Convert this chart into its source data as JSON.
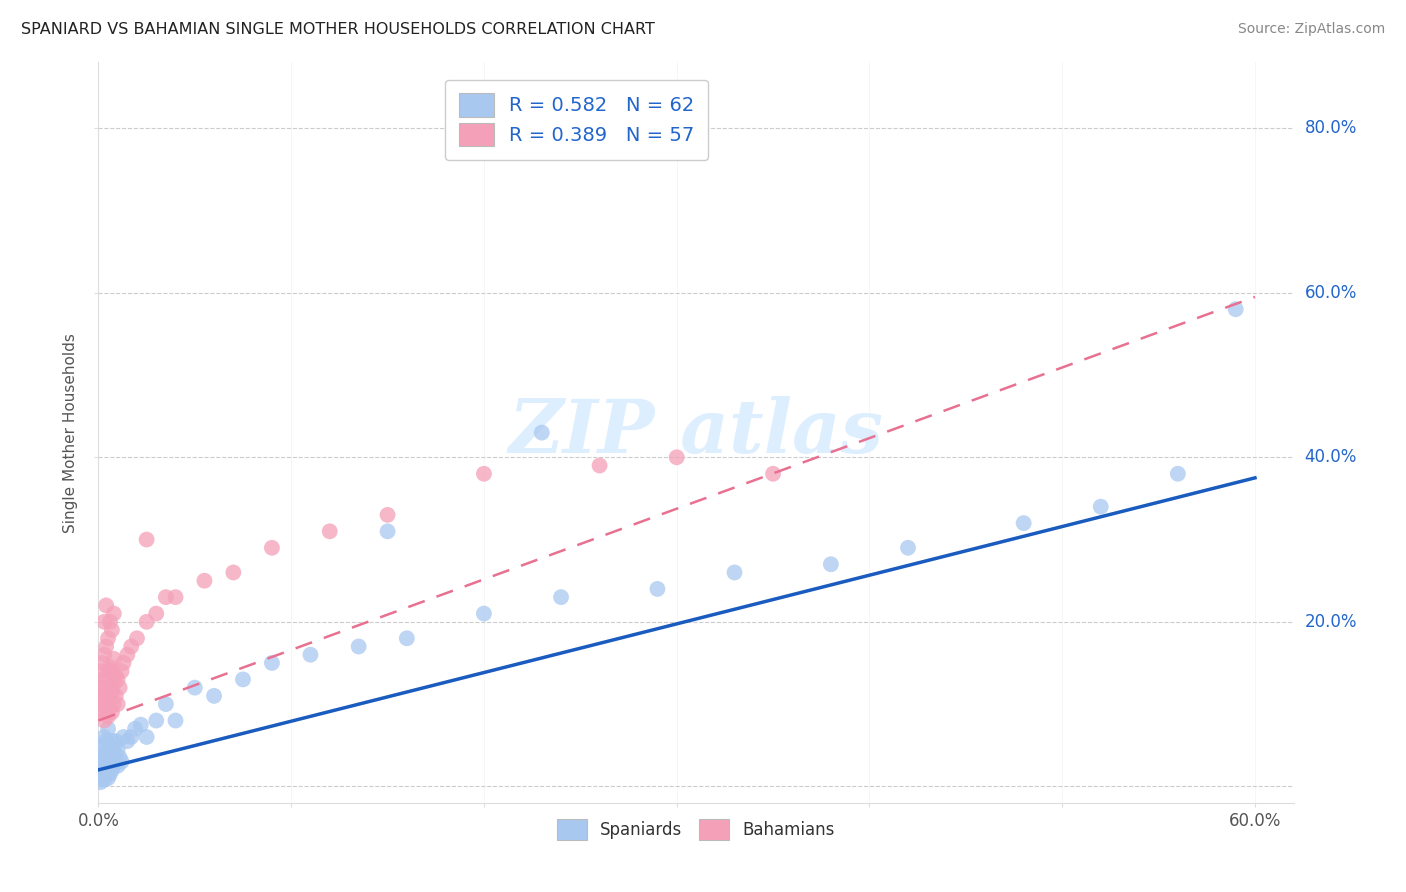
{
  "title": "SPANIARD VS BAHAMIAN SINGLE MOTHER HOUSEHOLDS CORRELATION CHART",
  "source": "Source: ZipAtlas.com",
  "ylabel": "Single Mother Households",
  "xlim": [
    0.0,
    0.62
  ],
  "ylim": [
    -0.02,
    0.88
  ],
  "xticks": [
    0.0,
    0.1,
    0.2,
    0.3,
    0.4,
    0.5,
    0.6
  ],
  "xticklabels": [
    "0.0%",
    "",
    "",
    "",
    "",
    "",
    "60.0%"
  ],
  "ytick_positions": [
    0.2,
    0.4,
    0.6,
    0.8
  ],
  "ytick_labels": [
    "20.0%",
    "40.0%",
    "60.0%",
    "80.0%"
  ],
  "grid_yticks": [
    0.0,
    0.2,
    0.4,
    0.6,
    0.8
  ],
  "spaniards_R": 0.582,
  "spaniards_N": 62,
  "bahamians_R": 0.389,
  "bahamians_N": 57,
  "spaniards_color": "#a8c8f0",
  "bahamians_color": "#f4a0b8",
  "spaniards_line_color": "#1a5bbf",
  "bahamians_line_color": "#e87090",
  "watermark_color": "#ddeeff",
  "background_color": "#ffffff",
  "grid_color": "#cccccc",
  "legend_text_color": "#2266cc",
  "spaniards_x": [
    0.001,
    0.001,
    0.001,
    0.002,
    0.002,
    0.002,
    0.002,
    0.003,
    0.003,
    0.003,
    0.003,
    0.003,
    0.004,
    0.004,
    0.004,
    0.004,
    0.005,
    0.005,
    0.005,
    0.005,
    0.006,
    0.006,
    0.006,
    0.007,
    0.007,
    0.007,
    0.008,
    0.008,
    0.009,
    0.009,
    0.01,
    0.01,
    0.011,
    0.012,
    0.013,
    0.015,
    0.017,
    0.019,
    0.022,
    0.025,
    0.03,
    0.035,
    0.04,
    0.05,
    0.06,
    0.075,
    0.09,
    0.11,
    0.135,
    0.16,
    0.2,
    0.24,
    0.29,
    0.33,
    0.38,
    0.42,
    0.48,
    0.52,
    0.56,
    0.59,
    0.23,
    0.15
  ],
  "spaniards_y": [
    0.02,
    0.03,
    0.005,
    0.01,
    0.015,
    0.025,
    0.04,
    0.008,
    0.02,
    0.035,
    0.05,
    0.06,
    0.015,
    0.025,
    0.04,
    0.055,
    0.01,
    0.02,
    0.035,
    0.07,
    0.015,
    0.03,
    0.045,
    0.02,
    0.04,
    0.055,
    0.025,
    0.045,
    0.03,
    0.055,
    0.025,
    0.045,
    0.035,
    0.03,
    0.06,
    0.055,
    0.06,
    0.07,
    0.075,
    0.06,
    0.08,
    0.1,
    0.08,
    0.12,
    0.11,
    0.13,
    0.15,
    0.16,
    0.17,
    0.18,
    0.21,
    0.23,
    0.24,
    0.26,
    0.27,
    0.29,
    0.32,
    0.34,
    0.38,
    0.58,
    0.43,
    0.31
  ],
  "bahamians_x": [
    0.001,
    0.001,
    0.001,
    0.002,
    0.002,
    0.002,
    0.002,
    0.003,
    0.003,
    0.003,
    0.003,
    0.004,
    0.004,
    0.004,
    0.004,
    0.005,
    0.005,
    0.005,
    0.006,
    0.006,
    0.006,
    0.007,
    0.007,
    0.007,
    0.008,
    0.008,
    0.008,
    0.009,
    0.009,
    0.01,
    0.01,
    0.011,
    0.012,
    0.013,
    0.015,
    0.017,
    0.02,
    0.025,
    0.03,
    0.035,
    0.04,
    0.055,
    0.07,
    0.09,
    0.12,
    0.15,
    0.2,
    0.26,
    0.3,
    0.35,
    0.003,
    0.004,
    0.005,
    0.006,
    0.007,
    0.008,
    0.025
  ],
  "bahamians_y": [
    0.1,
    0.12,
    0.14,
    0.09,
    0.11,
    0.13,
    0.15,
    0.08,
    0.1,
    0.12,
    0.16,
    0.09,
    0.11,
    0.13,
    0.17,
    0.085,
    0.11,
    0.14,
    0.095,
    0.115,
    0.145,
    0.09,
    0.115,
    0.14,
    0.1,
    0.125,
    0.155,
    0.11,
    0.135,
    0.1,
    0.13,
    0.12,
    0.14,
    0.15,
    0.16,
    0.17,
    0.18,
    0.2,
    0.21,
    0.23,
    0.23,
    0.25,
    0.26,
    0.29,
    0.31,
    0.33,
    0.38,
    0.39,
    0.4,
    0.38,
    0.2,
    0.22,
    0.18,
    0.2,
    0.19,
    0.21,
    0.3
  ],
  "span_line_x0": 0.0,
  "span_line_y0": 0.02,
  "span_line_x1": 0.6,
  "span_line_y1": 0.375,
  "bah_line_x0": 0.0,
  "bah_line_y0": 0.08,
  "bah_line_x1": 0.6,
  "bah_line_y1": 0.595
}
